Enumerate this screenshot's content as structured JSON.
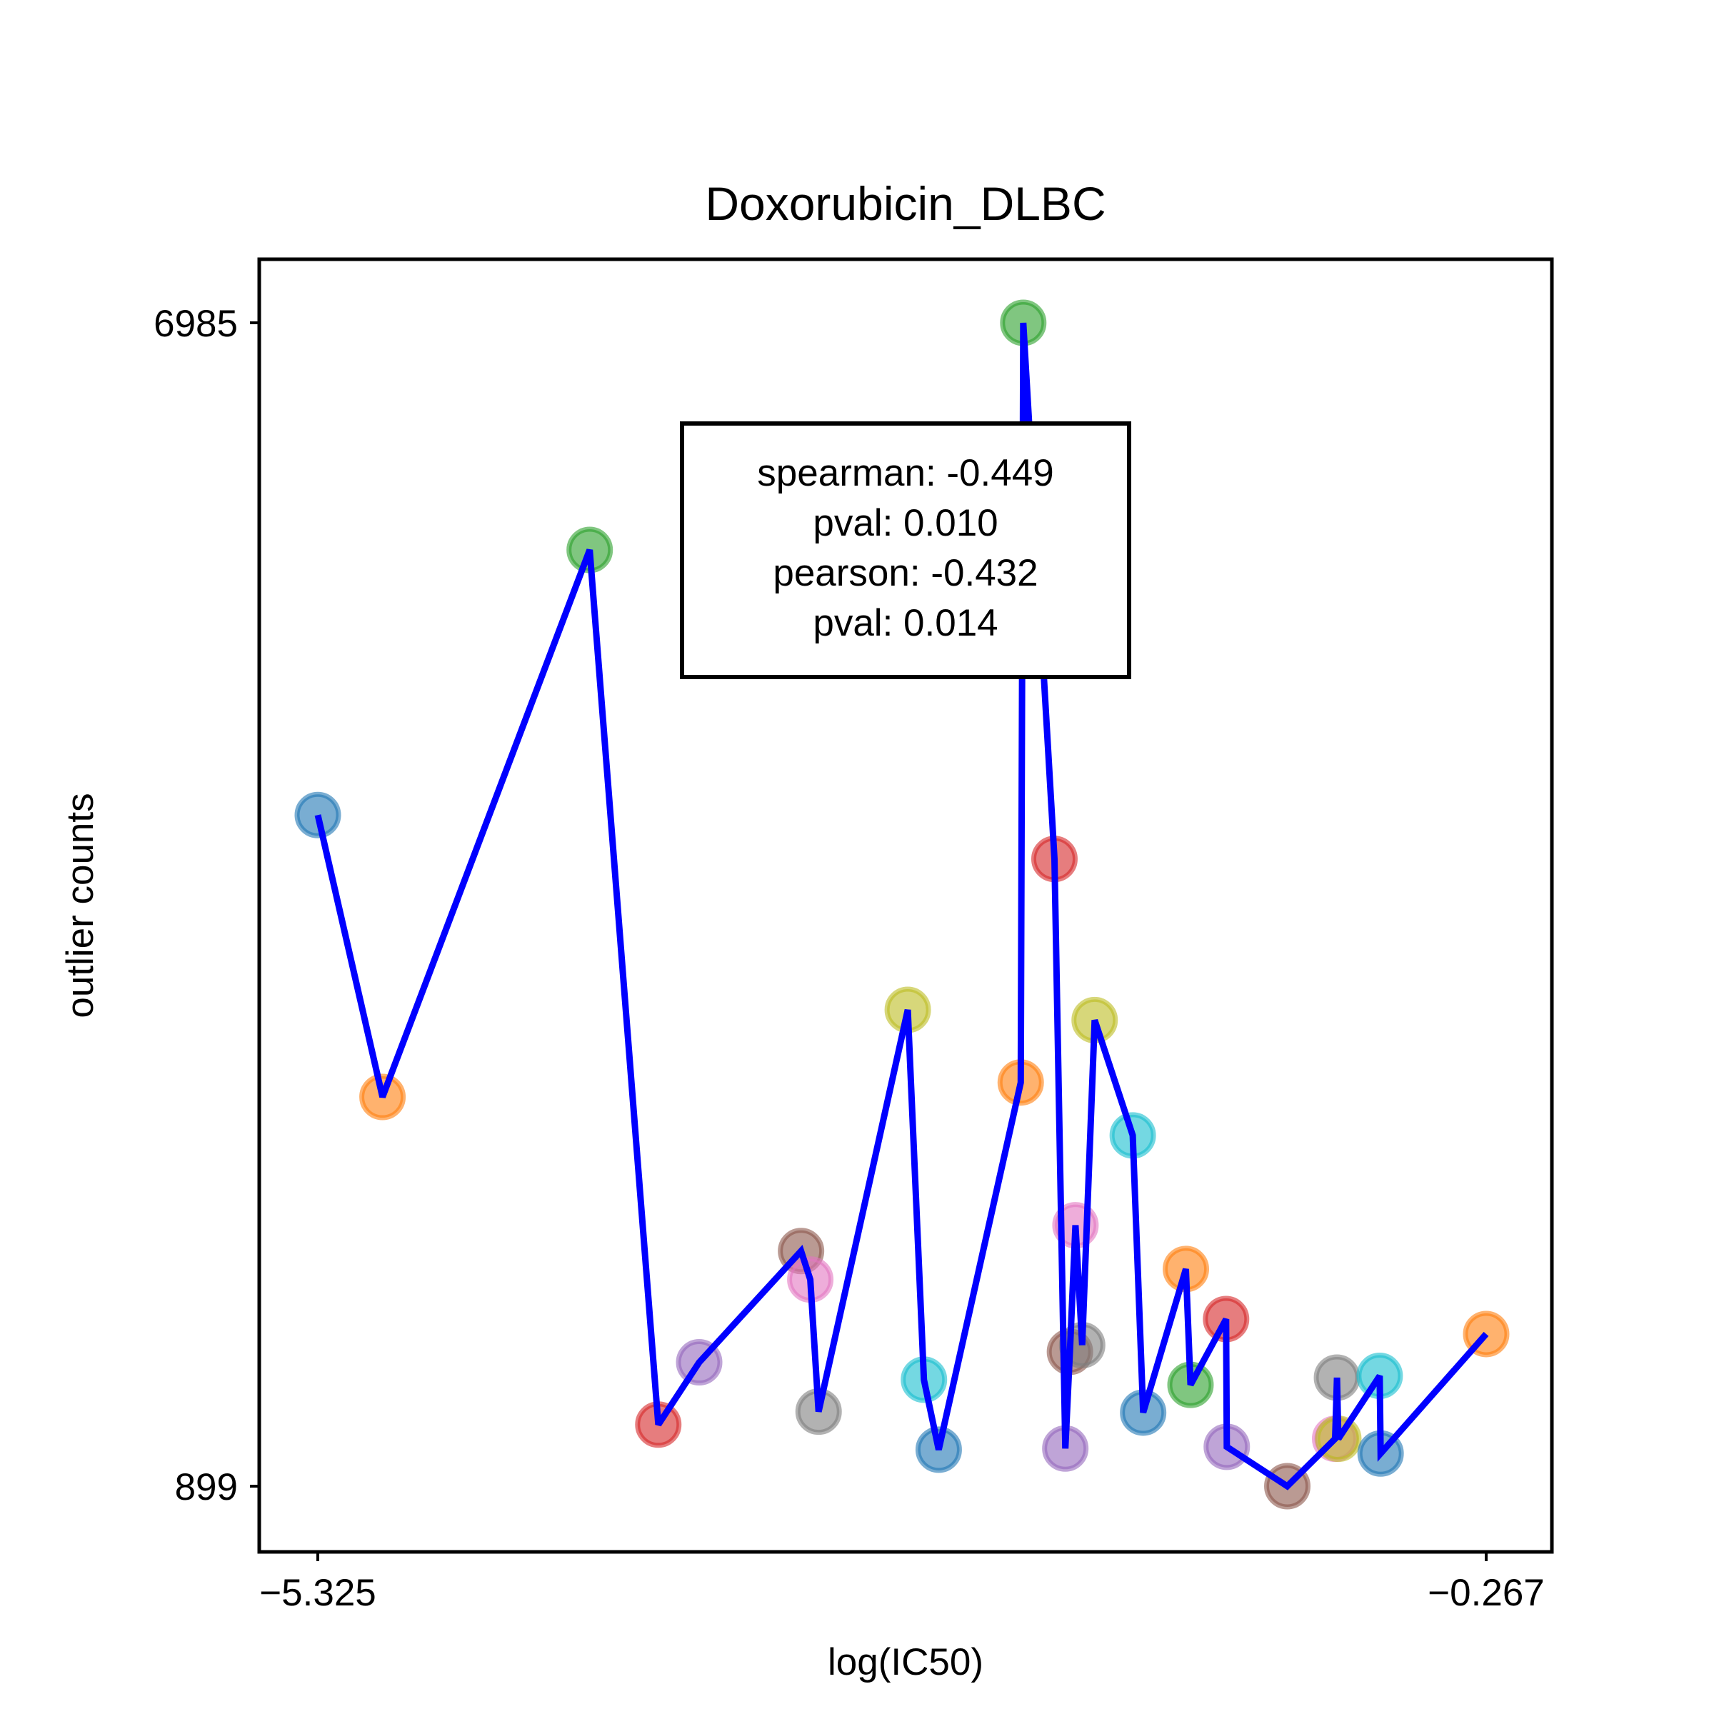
{
  "chart_data": {
    "type": "scatter",
    "title": "Doxorubicin_DLBC",
    "xlabel": "log(IC50)",
    "ylabel": "outlier counts",
    "xlim": [
      -5.325,
      -0.267
    ],
    "ylim": [
      899,
      6985
    ],
    "xticks": [
      {
        "value": -5.325,
        "label": "−5.325"
      },
      {
        "value": -0.267,
        "label": "−0.267"
      }
    ],
    "yticks": [
      {
        "value": 6985,
        "label": "6985"
      },
      {
        "value": 899,
        "label": "899"
      }
    ],
    "grid": false,
    "legend": "none",
    "line_color": "#0000ff",
    "marker_colors": [
      "#1f77b4",
      "#ff7f0e",
      "#2ca02c",
      "#d62728",
      "#9467bd",
      "#8c564b",
      "#e377c2",
      "#7f7f7f",
      "#bcbd22",
      "#17becf"
    ],
    "points": [
      {
        "x": -5.325,
        "y": 4410
      },
      {
        "x": -5.045,
        "y": 2935
      },
      {
        "x": -4.148,
        "y": 5797
      },
      {
        "x": -3.851,
        "y": 1221
      },
      {
        "x": -3.674,
        "y": 1547
      },
      {
        "x": -3.233,
        "y": 2129
      },
      {
        "x": -3.193,
        "y": 1980
      },
      {
        "x": -3.157,
        "y": 1289
      },
      {
        "x": -2.771,
        "y": 3391
      },
      {
        "x": -2.701,
        "y": 1456
      },
      {
        "x": -2.637,
        "y": 1090
      },
      {
        "x": -2.282,
        "y": 3011
      },
      {
        "x": -2.271,
        "y": 6985
      },
      {
        "x": -2.136,
        "y": 4180
      },
      {
        "x": -2.089,
        "y": 1096
      },
      {
        "x": -2.069,
        "y": 1602
      },
      {
        "x": -2.045,
        "y": 2264
      },
      {
        "x": -2.016,
        "y": 1637
      },
      {
        "x": -1.962,
        "y": 3337
      },
      {
        "x": -1.797,
        "y": 2734
      },
      {
        "x": -1.752,
        "y": 1284
      },
      {
        "x": -1.567,
        "y": 2035
      },
      {
        "x": -1.547,
        "y": 1429
      },
      {
        "x": -1.393,
        "y": 1773
      },
      {
        "x": -1.39,
        "y": 1105
      },
      {
        "x": -1.128,
        "y": 899
      },
      {
        "x": -0.921,
        "y": 1147
      },
      {
        "x": -0.913,
        "y": 1467
      },
      {
        "x": -0.907,
        "y": 1147
      },
      {
        "x": -0.728,
        "y": 1476
      },
      {
        "x": -0.724,
        "y": 1070
      },
      {
        "x": -0.267,
        "y": 1695
      }
    ],
    "annotation": {
      "lines": [
        "spearman: -0.449",
        "pval: 0.010",
        "pearson: -0.432",
        "pval: 0.014"
      ]
    }
  }
}
